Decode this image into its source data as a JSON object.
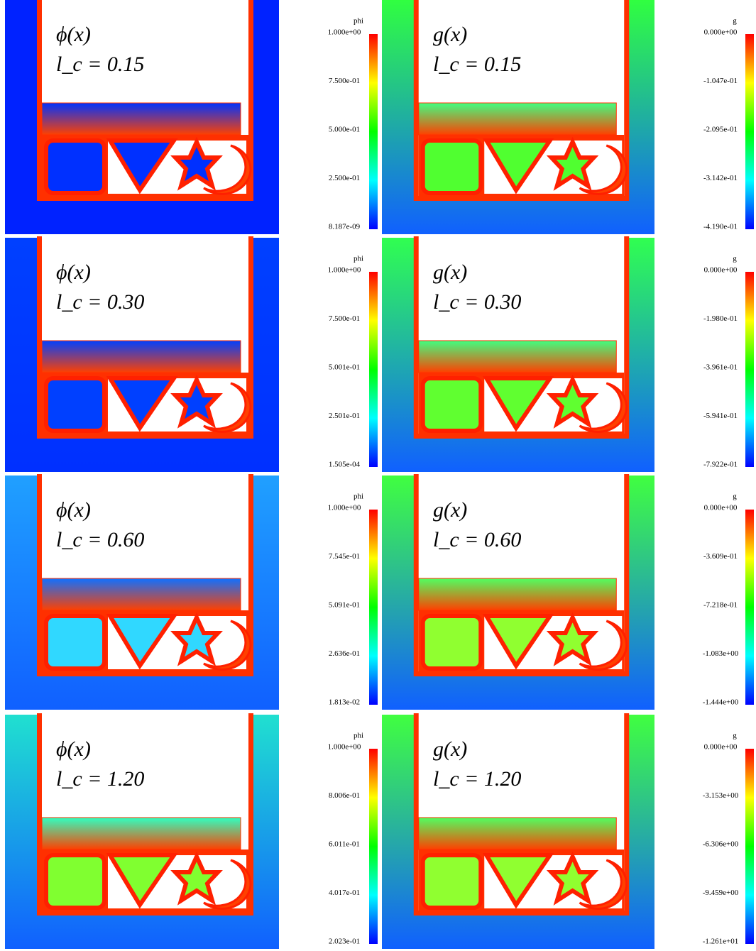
{
  "rows": [
    {
      "phi": {
        "label": "ϕ(x)",
        "lc": "l_c = 0.15",
        "colorbar": {
          "title": "phi",
          "ticks": [
            "1.000e+00",
            "7.500e-01",
            "5.000e-01",
            "2.500e-01",
            "8.187e-09"
          ]
        },
        "colors": {
          "outer": "#0022ff",
          "bottom": "#0022ff",
          "bar": "#0033ff",
          "cell": "#0030ff"
        }
      },
      "g": {
        "label": "g(x)",
        "lc": "l_c = 0.15",
        "colorbar": {
          "title": "g",
          "ticks": [
            "0.000e+00",
            "-1.047e-01",
            "-2.095e-01",
            "-3.142e-01",
            "-4.190e-01"
          ]
        },
        "colors": {
          "outer": "#30ff40",
          "bottom": "#1060ff",
          "bar": "#40ff80",
          "cell": "#50ff30"
        }
      }
    },
    {
      "phi": {
        "label": "ϕ(x)",
        "lc": "l_c = 0.30",
        "colorbar": {
          "title": "phi",
          "ticks": [
            "1.000e+00",
            "7.500e-01",
            "5.001e-01",
            "2.501e-01",
            "1.505e-04"
          ]
        },
        "colors": {
          "outer": "#0040ff",
          "bottom": "#0030ff",
          "bar": "#0040ff",
          "cell": "#0040ff"
        }
      },
      "g": {
        "label": "g(x)",
        "lc": "l_c = 0.30",
        "colorbar": {
          "title": "g",
          "ticks": [
            "0.000e+00",
            "-1.980e-01",
            "-3.961e-01",
            "-5.941e-01",
            "-7.922e-01"
          ]
        },
        "colors": {
          "outer": "#30ff50",
          "bottom": "#1060ff",
          "bar": "#40ff80",
          "cell": "#60ff30"
        }
      }
    },
    {
      "phi": {
        "label": "ϕ(x)",
        "lc": "l_c = 0.60",
        "colorbar": {
          "title": "phi",
          "ticks": [
            "1.000e+00",
            "7.545e-01",
            "5.091e-01",
            "2.636e-01",
            "1.813e-02"
          ]
        },
        "colors": {
          "outer": "#20a0ff",
          "bottom": "#1060ff",
          "bar": "#1070ff",
          "cell": "#30d8ff"
        }
      },
      "g": {
        "label": "g(x)",
        "lc": "l_c = 0.60",
        "colorbar": {
          "title": "g",
          "ticks": [
            "0.000e+00",
            "-3.609e-01",
            "-7.218e-01",
            "-1.083e+00",
            "-1.444e+00"
          ]
        },
        "colors": {
          "outer": "#40ff40",
          "bottom": "#1060ff",
          "bar": "#50ff60",
          "cell": "#90ff30"
        }
      }
    },
    {
      "phi": {
        "label": "ϕ(x)",
        "lc": "l_c = 1.20",
        "colorbar": {
          "title": "phi",
          "ticks": [
            "1.000e+00",
            "8.006e-01",
            "6.011e-01",
            "4.017e-01",
            "2.023e-01"
          ]
        },
        "colors": {
          "outer": "#20e0d0",
          "bottom": "#1060ff",
          "bar": "#30ffc0",
          "cell": "#80ff30"
        }
      },
      "g": {
        "label": "g(x)",
        "lc": "l_c = 1.20",
        "colorbar": {
          "title": "g",
          "ticks": [
            "0.000e+00",
            "-3.153e+00",
            "-6.306e+00",
            "-9.459e+00",
            "-1.261e+01"
          ]
        },
        "colors": {
          "outer": "#40ff40",
          "bottom": "#1060ff",
          "bar": "#50ff60",
          "cell": "#90ff30"
        }
      }
    }
  ]
}
